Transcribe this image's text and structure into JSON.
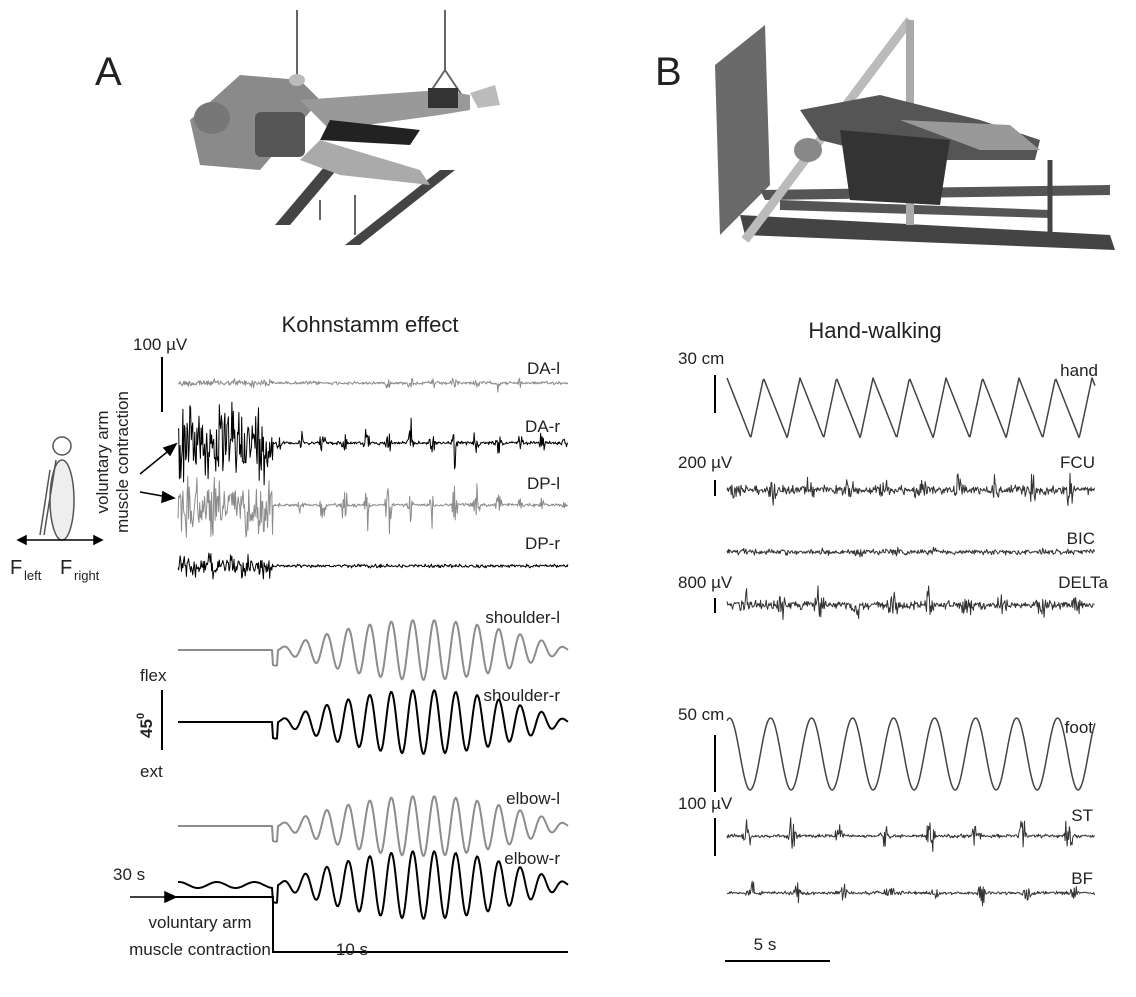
{
  "panel_a": {
    "label": "A",
    "title": "Kohnstamm effect",
    "emg_scale": "100 µV",
    "emg_traces": [
      "DA-l",
      "DA-r",
      "DP-l",
      "DP-r"
    ],
    "side_label": [
      "voluntary arm",
      "muscle contraction"
    ],
    "force_left": {
      "symbol": "F",
      "subscript": "left"
    },
    "force_right": {
      "symbol": "F",
      "subscript": "right"
    },
    "angle_traces": [
      "shoulder-l",
      "shoulder-r",
      "elbow-l",
      "elbow-r"
    ],
    "angle_scale": {
      "top": "flex",
      "value": "45",
      "superscript": "0",
      "bottom": "ext"
    },
    "time_start": "30 s",
    "stim_label": [
      "voluntary arm",
      "muscle contraction"
    ],
    "time_scale": "10 s"
  },
  "panel_b": {
    "label": "B",
    "title": "Hand-walking",
    "scales": [
      "30 cm",
      "200 µV",
      "800 µV",
      "50 cm",
      "100 µV"
    ],
    "traces": [
      "hand",
      "FCU",
      "BIC",
      "DELTa",
      "foot",
      "ST",
      "BF"
    ],
    "time_scale": "5 s"
  }
}
